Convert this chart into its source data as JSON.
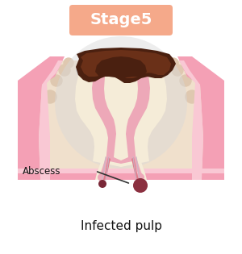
{
  "bg_color": "#ffffff",
  "stage_label": "Stage5",
  "stage_box_color": "#F5A98A",
  "stage_text_color": "#ffffff",
  "bottom_label": "Infected pulp",
  "abscess_label": "Abscess",
  "gum_color": "#F4A0B5",
  "gum_light": "#F9C8D4",
  "bone_color": "#F0E0CC",
  "bone_dot_color": "#DFC8B0",
  "enamel_color": "#D8D8D8",
  "enamel_alpha": 0.85,
  "dentin_color": "#F5ECD8",
  "pulp_outer_color": "#EDA8B8",
  "pulp_inner_color": "#E07888",
  "canal_line_color": "#C8B8C8",
  "decay_dark": "#4A2010",
  "decay_mid": "#6A3018",
  "decay_light": "#8A5030",
  "abscess_color": "#8B3040",
  "abscess_small_color": "#7A2838",
  "nerve_color": "#B8C0CC",
  "gum_line_color": "#F4A0B5",
  "bottom_bar_color": "#F4A0B5"
}
